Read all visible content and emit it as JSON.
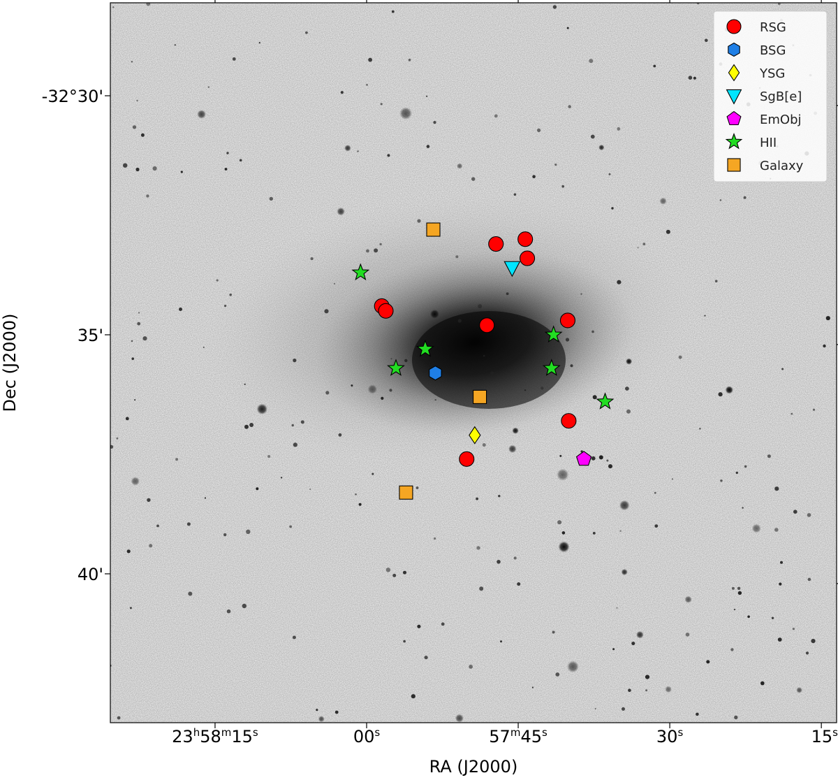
{
  "chart_data": {
    "type": "scatter",
    "xlabel": "RA (J2000)",
    "ylabel": "Dec (J2000)",
    "background": "grayscale sky image",
    "legend": "top-right",
    "grid": false,
    "x_ticks": [
      {
        "label": "23h58m15s",
        "h": "23",
        "m": "58",
        "s": "15",
        "ra_sec": 15
      },
      {
        "label": "00s",
        "s": "00",
        "ra_sec": 0
      },
      {
        "label": "57m45s",
        "m": "57",
        "s": "45",
        "ra_sec": -15
      },
      {
        "label": "30s",
        "s": "30",
        "ra_sec": -30
      },
      {
        "label": "15s",
        "s": "15",
        "ra_sec": -45
      }
    ],
    "y_ticks": [
      {
        "label": "-32°30'",
        "dec_arcmin": 30
      },
      {
        "label": "35'",
        "dec_arcmin": 35
      },
      {
        "label": "40'",
        "dec_arcmin": 40
      }
    ],
    "series": [
      {
        "name": "RSG",
        "marker": "circle",
        "color": "#ff0000",
        "points": [
          [
            -1.5,
            34.4
          ],
          [
            -1.9,
            34.5
          ],
          [
            -12.8,
            33.1
          ],
          [
            -15.7,
            33.0
          ],
          [
            -15.9,
            33.4
          ],
          [
            -19.9,
            34.7
          ],
          [
            -11.9,
            34.8
          ],
          [
            -20.0,
            36.8
          ],
          [
            -9.9,
            37.6
          ]
        ]
      },
      {
        "name": "BSG",
        "marker": "hexagon",
        "color": "#1f7fe6",
        "points": [
          [
            -6.8,
            35.8
          ]
        ]
      },
      {
        "name": "YSG",
        "marker": "diamond",
        "color": "#ffff00",
        "points": [
          [
            -10.7,
            37.1
          ]
        ]
      },
      {
        "name": "SgB[e]",
        "marker": "triangle-down",
        "color": "#00e5ff",
        "points": [
          [
            -14.4,
            33.6
          ]
        ]
      },
      {
        "name": "EmObj",
        "marker": "pentagon",
        "color": "#ff00ff",
        "points": [
          [
            -21.5,
            37.6
          ]
        ]
      },
      {
        "name": "HII",
        "marker": "star",
        "color": "#22dd22",
        "points": [
          [
            0.6,
            33.7
          ],
          [
            -5.8,
            35.3
          ],
          [
            -2.9,
            35.7
          ],
          [
            -18.5,
            35.0
          ],
          [
            -18.3,
            35.7
          ],
          [
            -23.6,
            36.4
          ]
        ]
      },
      {
        "name": "Galaxy",
        "marker": "square",
        "color": "#f5a623",
        "points": [
          [
            -6.6,
            32.8
          ],
          [
            -11.2,
            36.3
          ],
          [
            -3.9,
            38.3
          ]
        ]
      }
    ]
  }
}
